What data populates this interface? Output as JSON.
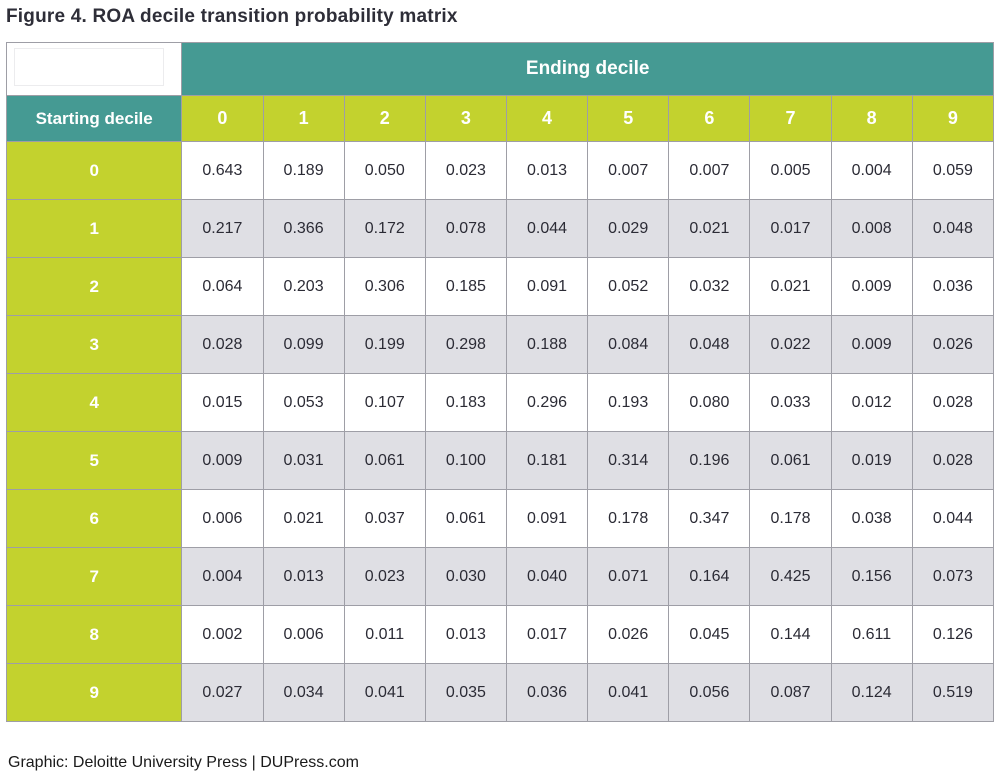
{
  "title": "Figure 4. ROA decile transition probability matrix",
  "table": {
    "ending_decile_label": "Ending decile",
    "starting_decile_label": "Starting decile",
    "column_headers": [
      "0",
      "1",
      "2",
      "3",
      "4",
      "5",
      "6",
      "7",
      "8",
      "9"
    ],
    "rows": [
      {
        "label": "0",
        "values": [
          "0.643",
          "0.189",
          "0.050",
          "0.023",
          "0.013",
          "0.007",
          "0.007",
          "0.005",
          "0.004",
          "0.059"
        ]
      },
      {
        "label": "1",
        "values": [
          "0.217",
          "0.366",
          "0.172",
          "0.078",
          "0.044",
          "0.029",
          "0.021",
          "0.017",
          "0.008",
          "0.048"
        ]
      },
      {
        "label": "2",
        "values": [
          "0.064",
          "0.203",
          "0.306",
          "0.185",
          "0.091",
          "0.052",
          "0.032",
          "0.021",
          "0.009",
          "0.036"
        ]
      },
      {
        "label": "3",
        "values": [
          "0.028",
          "0.099",
          "0.199",
          "0.298",
          "0.188",
          "0.084",
          "0.048",
          "0.022",
          "0.009",
          "0.026"
        ]
      },
      {
        "label": "4",
        "values": [
          "0.015",
          "0.053",
          "0.107",
          "0.183",
          "0.296",
          "0.193",
          "0.080",
          "0.033",
          "0.012",
          "0.028"
        ]
      },
      {
        "label": "5",
        "values": [
          "0.009",
          "0.031",
          "0.061",
          "0.100",
          "0.181",
          "0.314",
          "0.196",
          "0.061",
          "0.019",
          "0.028"
        ]
      },
      {
        "label": "6",
        "values": [
          "0.006",
          "0.021",
          "0.037",
          "0.061",
          "0.091",
          "0.178",
          "0.347",
          "0.178",
          "0.038",
          "0.044"
        ]
      },
      {
        "label": "7",
        "values": [
          "0.004",
          "0.013",
          "0.023",
          "0.030",
          "0.040",
          "0.071",
          "0.164",
          "0.425",
          "0.156",
          "0.073"
        ]
      },
      {
        "label": "8",
        "values": [
          "0.002",
          "0.006",
          "0.011",
          "0.013",
          "0.017",
          "0.026",
          "0.045",
          "0.144",
          "0.611",
          "0.126"
        ]
      },
      {
        "label": "9",
        "values": [
          "0.027",
          "0.034",
          "0.041",
          "0.035",
          "0.036",
          "0.041",
          "0.056",
          "0.087",
          "0.124",
          "0.519"
        ]
      }
    ]
  },
  "footer": {
    "credit": "Graphic: Deloitte University Press  |  DUPress.com"
  },
  "colors": {
    "teal_header": "#459a93",
    "lime_header": "#c3d22e",
    "stripe_gray": "#dfdfe4",
    "border_gray": "#9e9ea6",
    "text_dark": "#2e2e38"
  },
  "chart_data": {
    "type": "table",
    "title": "Figure 4. ROA decile transition probability matrix",
    "row_axis_label": "Starting decile",
    "column_axis_label": "Ending decile",
    "columns": [
      "0",
      "1",
      "2",
      "3",
      "4",
      "5",
      "6",
      "7",
      "8",
      "9"
    ],
    "rows": [
      "0",
      "1",
      "2",
      "3",
      "4",
      "5",
      "6",
      "7",
      "8",
      "9"
    ],
    "matrix": [
      [
        0.643,
        0.189,
        0.05,
        0.023,
        0.013,
        0.007,
        0.007,
        0.005,
        0.004,
        0.059
      ],
      [
        0.217,
        0.366,
        0.172,
        0.078,
        0.044,
        0.029,
        0.021,
        0.017,
        0.008,
        0.048
      ],
      [
        0.064,
        0.203,
        0.306,
        0.185,
        0.091,
        0.052,
        0.032,
        0.021,
        0.009,
        0.036
      ],
      [
        0.028,
        0.099,
        0.199,
        0.298,
        0.188,
        0.084,
        0.048,
        0.022,
        0.009,
        0.026
      ],
      [
        0.015,
        0.053,
        0.107,
        0.183,
        0.296,
        0.193,
        0.08,
        0.033,
        0.012,
        0.028
      ],
      [
        0.009,
        0.031,
        0.061,
        0.1,
        0.181,
        0.314,
        0.196,
        0.061,
        0.019,
        0.028
      ],
      [
        0.006,
        0.021,
        0.037,
        0.061,
        0.091,
        0.178,
        0.347,
        0.178,
        0.038,
        0.044
      ],
      [
        0.004,
        0.013,
        0.023,
        0.03,
        0.04,
        0.071,
        0.164,
        0.425,
        0.156,
        0.073
      ],
      [
        0.002,
        0.006,
        0.011,
        0.013,
        0.017,
        0.026,
        0.045,
        0.144,
        0.611,
        0.126
      ],
      [
        0.027,
        0.034,
        0.041,
        0.035,
        0.036,
        0.041,
        0.056,
        0.087,
        0.124,
        0.519
      ]
    ]
  }
}
